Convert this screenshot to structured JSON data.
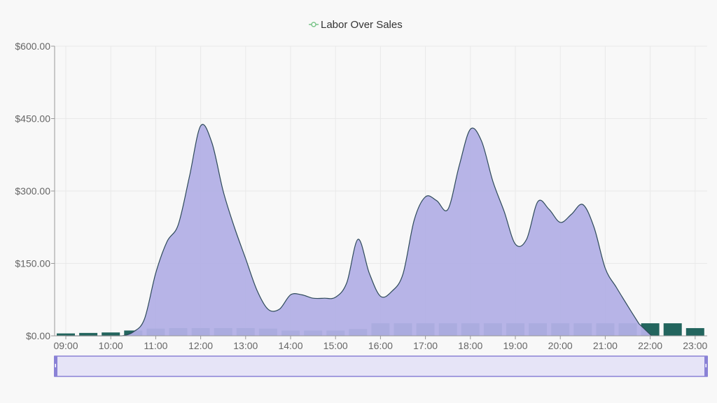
{
  "chart_data": {
    "type": "area",
    "legend": {
      "label": "Labor Over Sales",
      "placement": "top-center"
    },
    "x_ticks": [
      "09:00",
      "10:00",
      "11:00",
      "12:00",
      "13:00",
      "14:00",
      "15:00",
      "16:00",
      "17:00",
      "18:00",
      "19:00",
      "20:00",
      "21:00",
      "22:00",
      "23:00"
    ],
    "y_ticks": [
      "$0.00",
      "$150.00",
      "$300.00",
      "$450.00",
      "$600.00"
    ],
    "ylim": [
      0,
      600
    ],
    "xlim": [
      9.0,
      23.3
    ],
    "grid": true,
    "area_series": {
      "name": "Labor Over Sales",
      "color": "#b3b0e6",
      "stroke": "#2e4a5a",
      "x": [
        9.0,
        9.5,
        10.0,
        10.25,
        10.5,
        10.75,
        11.0,
        11.25,
        11.5,
        11.75,
        12.0,
        12.25,
        12.5,
        12.75,
        13.0,
        13.25,
        13.5,
        13.75,
        14.0,
        14.25,
        14.5,
        14.75,
        15.0,
        15.25,
        15.5,
        15.75,
        16.0,
        16.25,
        16.5,
        16.75,
        17.0,
        17.25,
        17.5,
        17.75,
        18.0,
        18.25,
        18.5,
        18.75,
        19.0,
        19.25,
        19.5,
        19.75,
        20.0,
        20.25,
        20.5,
        20.75,
        21.0,
        21.25,
        21.5,
        21.75
      ],
      "y": [
        0,
        0,
        0,
        0,
        8,
        35,
        130,
        195,
        230,
        330,
        435,
        400,
        300,
        225,
        160,
        95,
        55,
        55,
        85,
        85,
        78,
        78,
        80,
        110,
        200,
        130,
        82,
        92,
        128,
        240,
        288,
        280,
        262,
        352,
        428,
        403,
        320,
        258,
        190,
        200,
        278,
        262,
        235,
        252,
        272,
        225,
        140,
        100,
        62,
        25
      ]
    },
    "bar_series": {
      "color": "#23655e",
      "x": [
        9.0,
        9.5,
        10.0,
        10.5,
        11.0,
        11.5,
        12.0,
        12.5,
        13.0,
        13.5,
        14.0,
        14.5,
        15.0,
        15.5,
        16.0,
        16.5,
        17.0,
        17.5,
        18.0,
        18.5,
        19.0,
        19.5,
        20.0,
        20.5,
        21.0,
        21.5,
        22.0,
        22.5,
        23.0
      ],
      "values": [
        5,
        6,
        7,
        11,
        15,
        16,
        16,
        16,
        16,
        15,
        11,
        11,
        11,
        14,
        26,
        26,
        26,
        26,
        26,
        26,
        26,
        26,
        26,
        26,
        26,
        26,
        26,
        26,
        16
      ]
    }
  },
  "scrollbar": {
    "fill": "#e6e4f7",
    "border": "#8a82d6",
    "start": 0,
    "end": 1
  }
}
